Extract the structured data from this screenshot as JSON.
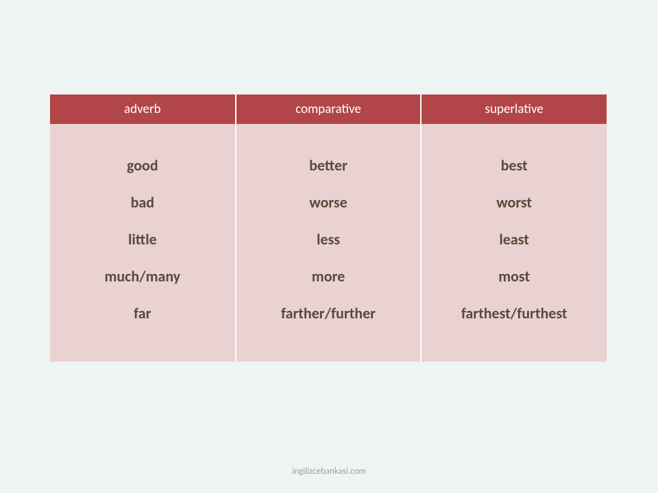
{
  "table": {
    "columns": [
      "adverb",
      "comparative",
      "superlative"
    ],
    "rows": [
      [
        "good",
        "better",
        "best"
      ],
      [
        "bad",
        "worse",
        "worst"
      ],
      [
        "little",
        "less",
        "least"
      ],
      [
        "much/many",
        "more",
        "most"
      ],
      [
        "far",
        "farther/further",
        "farthest/furthest"
      ]
    ],
    "header_bg": "#b24548",
    "header_text_color": "#ffffff",
    "body_bg": "#e9d2d1",
    "body_text_color": "#5a4a3a",
    "grid_color": "#ffffff",
    "header_fontsize": 19,
    "body_fontsize": 22
  },
  "footer_text": "ingilizcebankasi.com",
  "page_bg": "#eef3f4"
}
